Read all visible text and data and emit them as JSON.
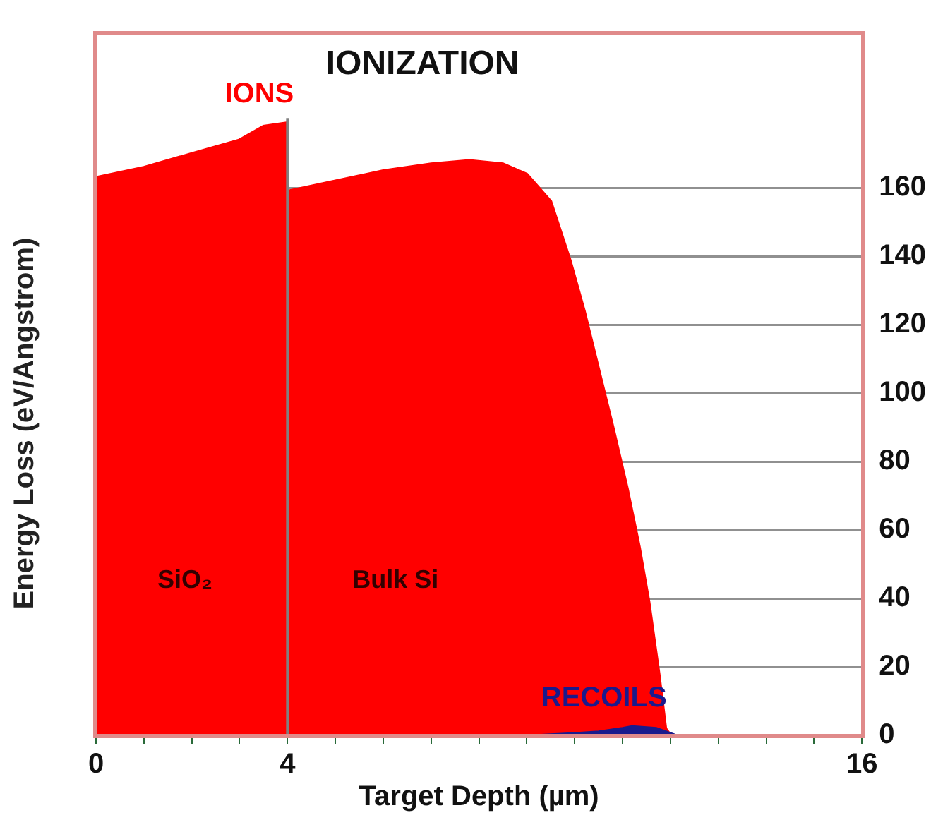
{
  "chart_data": {
    "type": "area",
    "title": "IONIZATION",
    "xlabel": "Target Depth (µm)",
    "ylabel": "Energy Loss (eV/Angstrom)",
    "xlim": [
      0,
      16
    ],
    "xticks": [
      0,
      {
        "value": 1,
        "label": null
      },
      {
        "value": 2,
        "label": null
      },
      {
        "value": 3,
        "label": null
      },
      4,
      {
        "value": 5,
        "label": null
      },
      {
        "value": 6,
        "label": null
      },
      {
        "value": 7,
        "label": null
      },
      {
        "value": 8,
        "label": null
      },
      {
        "value": 9,
        "label": null
      },
      {
        "value": 10,
        "label": null
      },
      {
        "value": 11,
        "label": null
      },
      {
        "value": 12,
        "label": null
      },
      {
        "value": 13,
        "label": null
      },
      {
        "value": 14,
        "label": null
      },
      {
        "value": 15,
        "label": null
      },
      16
    ],
    "ylim": [
      0,
      205
    ],
    "yticks": [
      0,
      20,
      40,
      60,
      80,
      100,
      120,
      140,
      160
    ],
    "grid": "y",
    "legend": false,
    "series": [
      {
        "name": "IONS",
        "color": "#ff0000",
        "x": [
          0,
          1,
          2,
          3,
          3.5,
          4,
          4,
          5,
          6,
          7,
          7.8,
          8.5,
          9,
          9.5,
          9.9,
          10.2,
          10.5,
          10.8,
          11.1,
          11.35,
          11.55,
          11.76,
          11.9,
          12
        ],
        "values": [
          163,
          166,
          170,
          174,
          178,
          179,
          159,
          162,
          165,
          167,
          168,
          167,
          164,
          156,
          139,
          124,
          107,
          90,
          72,
          55,
          39,
          18,
          2,
          0
        ]
      },
      {
        "name": "RECOILS",
        "color": "#1a1a8c",
        "x": [
          9.3,
          10,
          10.5,
          11,
          11.2,
          11.7,
          12.1
        ],
        "values": [
          0,
          0.5,
          1,
          2,
          2.5,
          2,
          0
        ]
      }
    ],
    "ref_lines": [
      {
        "axis": "x",
        "value": 4,
        "color": "#808080"
      }
    ],
    "annotations": [
      "SiO₂",
      "Bulk Si"
    ]
  }
}
